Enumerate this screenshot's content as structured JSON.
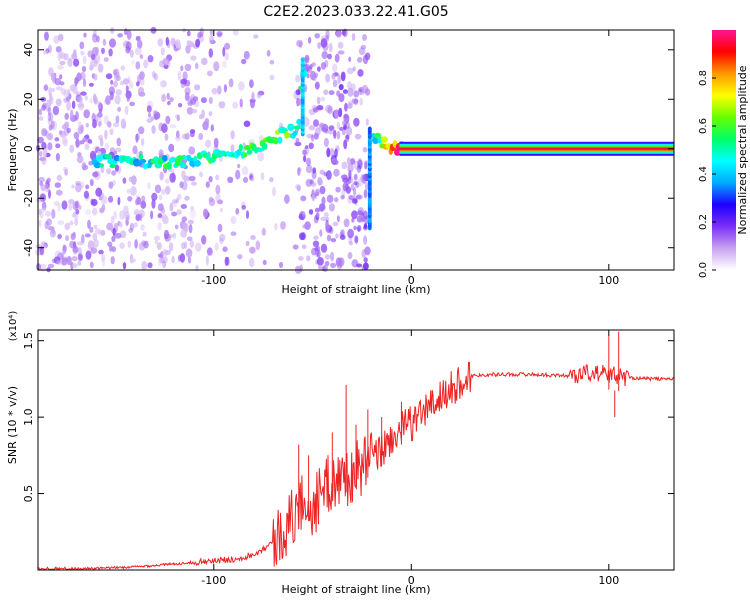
{
  "figure": {
    "title": "C2E2.2023.033.22.41.G05"
  },
  "chart_data": [
    {
      "type": "heatmap",
      "xlabel": "Height of straight line (km)",
      "ylabel": "Frequency (Hz)",
      "xlim": [
        -189,
        133
      ],
      "ylim": [
        -49,
        48
      ],
      "xticks": [
        -100,
        0,
        100
      ],
      "yticks": [
        -40,
        -20,
        0,
        20,
        40
      ],
      "colorbar": {
        "label": "Normalized spectral amplitude",
        "range": [
          0,
          1
        ],
        "ticks": [
          0.0,
          0.2,
          0.4,
          0.6,
          0.8
        ],
        "colormap": [
          "#ffffff",
          "#c8a2f0",
          "#7b2ff7",
          "#1e00ff",
          "#00aaff",
          "#00ffff",
          "#00ff66",
          "#66ff00",
          "#ffff00",
          "#ff9900",
          "#ff0000",
          "#ff1493"
        ]
      },
      "ridge": {
        "points": [
          {
            "x": -160,
            "y": -5,
            "amp": 0.35
          },
          {
            "x": -140,
            "y": -5,
            "amp": 0.3
          },
          {
            "x": -120,
            "y": -6,
            "amp": 0.35
          },
          {
            "x": -100,
            "y": -3,
            "amp": 0.4
          },
          {
            "x": -80,
            "y": 0,
            "amp": 0.4
          },
          {
            "x": -68,
            "y": 5,
            "amp": 0.45
          },
          {
            "x": -57,
            "y": 8,
            "amp": 0.4
          },
          {
            "x": -55,
            "y": 30,
            "amp": 0.35
          },
          {
            "x": -18,
            "y": 5,
            "amp": 0.3
          },
          {
            "x": -10,
            "y": 0,
            "amp": 0.7
          },
          {
            "x": 0,
            "y": 0,
            "amp": 0.95
          },
          {
            "x": 133,
            "y": 0,
            "amp": 0.95
          }
        ]
      }
    },
    {
      "type": "line",
      "xlabel": "Height of straight line (km)",
      "ylabel": "SNR (10 * v/v)",
      "yscale_label": "(x10⁴)",
      "xlim": [
        -189,
        133
      ],
      "ylim": [
        0,
        1.57
      ],
      "xticks": [
        -100,
        0,
        100
      ],
      "yticks": [
        0.5,
        1.0,
        1.5
      ],
      "series": [
        {
          "color": "#ee2222",
          "points": [
            {
              "x": -189,
              "y": 0.01
            },
            {
              "x": -160,
              "y": 0.01
            },
            {
              "x": -140,
              "y": 0.02
            },
            {
              "x": -120,
              "y": 0.04
            },
            {
              "x": -100,
              "y": 0.06
            },
            {
              "x": -90,
              "y": 0.07
            },
            {
              "x": -80,
              "y": 0.1
            },
            {
              "x": -70,
              "y": 0.18
            },
            {
              "x": -62,
              "y": 0.3
            },
            {
              "x": -55,
              "y": 0.45
            },
            {
              "x": -50,
              "y": 0.4
            },
            {
              "x": -45,
              "y": 0.52
            },
            {
              "x": -40,
              "y": 0.58
            },
            {
              "x": -35,
              "y": 0.6
            },
            {
              "x": -30,
              "y": 0.62
            },
            {
              "x": -25,
              "y": 0.68
            },
            {
              "x": -20,
              "y": 0.72
            },
            {
              "x": -15,
              "y": 0.78
            },
            {
              "x": -10,
              "y": 0.86
            },
            {
              "x": -5,
              "y": 0.92
            },
            {
              "x": 0,
              "y": 0.96
            },
            {
              "x": 5,
              "y": 1.02
            },
            {
              "x": 10,
              "y": 1.08
            },
            {
              "x": 15,
              "y": 1.13
            },
            {
              "x": 20,
              "y": 1.18
            },
            {
              "x": 25,
              "y": 1.23
            },
            {
              "x": 30,
              "y": 1.27
            },
            {
              "x": 40,
              "y": 1.28
            },
            {
              "x": 60,
              "y": 1.28
            },
            {
              "x": 80,
              "y": 1.27
            },
            {
              "x": 90,
              "y": 1.29
            },
            {
              "x": 100,
              "y": 1.28
            },
            {
              "x": 110,
              "y": 1.26
            },
            {
              "x": 120,
              "y": 1.25
            },
            {
              "x": 133,
              "y": 1.25
            }
          ],
          "spike_regions": [
            {
              "x": -57,
              "y": 0.82
            },
            {
              "x": -52,
              "y": 0.75
            },
            {
              "x": -40,
              "y": 0.9
            },
            {
              "x": -33,
              "y": 1.21
            },
            {
              "x": -28,
              "y": 0.95
            },
            {
              "x": -22,
              "y": 1.05
            },
            {
              "x": -15,
              "y": 1.0
            },
            {
              "x": -5,
              "y": 1.1
            },
            {
              "x": 100,
              "y": 1.53
            },
            {
              "x": 103,
              "y": 1.0
            },
            {
              "x": 105,
              "y": 1.56
            }
          ]
        }
      ]
    }
  ]
}
